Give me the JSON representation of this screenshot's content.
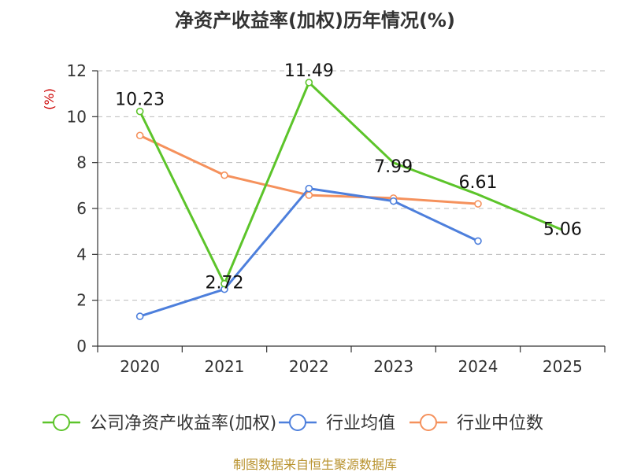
{
  "chart_data": {
    "type": "line",
    "title": "净资产收益率(加权)历年情况(%)",
    "ylabel": "(%)",
    "xlabel": "",
    "categories": [
      "2020",
      "2021",
      "2022",
      "2023",
      "2024",
      "2025"
    ],
    "ylim": [
      0,
      12
    ],
    "yticks": [
      0,
      2,
      4,
      6,
      8,
      10,
      12
    ],
    "grid": true,
    "legend_position": "bottom",
    "series": [
      {
        "name": "公司净资产收益率(加权)",
        "color": "#5cc42a",
        "values": [
          10.23,
          2.72,
          11.49,
          7.99,
          6.61,
          5.06
        ],
        "labels": [
          "10.23",
          "2.72",
          "11.49",
          "7.99",
          "6.61",
          "5.06"
        ],
        "show_labels": true,
        "markers": [
          true,
          true,
          true,
          false,
          false,
          false
        ]
      },
      {
        "name": "行业均值",
        "color": "#4d7fdc",
        "values": [
          1.3,
          2.48,
          6.87,
          6.32,
          4.58,
          null
        ],
        "show_labels": false,
        "markers": [
          true,
          true,
          true,
          true,
          true,
          false
        ]
      },
      {
        "name": "行业中位数",
        "color": "#f5915c",
        "values": [
          9.18,
          7.45,
          6.58,
          6.45,
          6.2,
          null
        ],
        "show_labels": false,
        "markers": [
          true,
          true,
          true,
          true,
          true,
          false
        ]
      }
    ],
    "source": "制图数据来自恒生聚源数据库"
  }
}
